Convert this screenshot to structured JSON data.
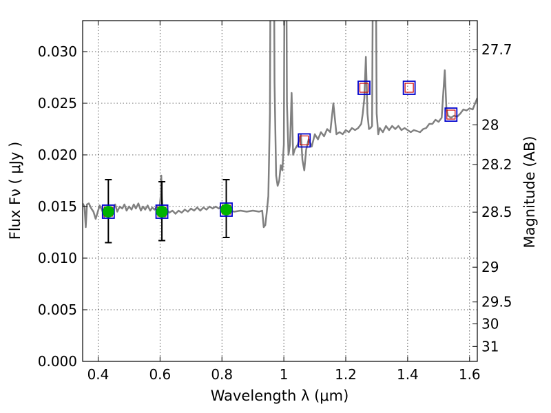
{
  "chart_data": {
    "type": "line",
    "xlabel": "Wavelength  λ (μm)",
    "ylabel": "Flux  Fν  ( μJy )",
    "y2label": "Magnitude (AB)",
    "xlim": [
      0.35,
      1.625
    ],
    "ylim": [
      0,
      0.033
    ],
    "grid": true,
    "x_ticks": [
      0.4,
      0.6,
      0.8,
      1.0,
      1.2,
      1.4,
      1.6
    ],
    "x_tick_labels": [
      "0.4",
      "0.6",
      "0.8",
      "1",
      "1.2",
      "1.4",
      "1.6"
    ],
    "y_ticks": [
      0.0,
      0.005,
      0.01,
      0.015,
      0.02,
      0.025,
      0.03
    ],
    "y_tick_labels": [
      "0.000",
      "0.005",
      "0.010",
      "0.015",
      "0.020",
      "0.025",
      "0.030"
    ],
    "y2_ticks": [
      {
        "mag": 27.7,
        "label": "27.7"
      },
      {
        "mag": 28.0,
        "label": "28"
      },
      {
        "mag": 28.2,
        "label": "28.2"
      },
      {
        "mag": 28.5,
        "label": "28.5"
      },
      {
        "mag": 29.0,
        "label": "29"
      },
      {
        "mag": 29.5,
        "label": "29.5"
      },
      {
        "mag": 30.0,
        "label": "30"
      },
      {
        "mag": 31.0,
        "label": "31"
      }
    ],
    "colors": {
      "spectrum": "#808080",
      "model_box": "#0000cc",
      "model_inner": "#cc0000",
      "detection": "#00b300",
      "errorbar": "#000000"
    },
    "spectrum": [
      [
        0.35,
        0.0153
      ],
      [
        0.356,
        0.015
      ],
      [
        0.36,
        0.013
      ],
      [
        0.364,
        0.0152
      ],
      [
        0.37,
        0.0153
      ],
      [
        0.378,
        0.0148
      ],
      [
        0.385,
        0.0145
      ],
      [
        0.392,
        0.0138
      ],
      [
        0.398,
        0.0144
      ],
      [
        0.405,
        0.0151
      ],
      [
        0.412,
        0.0147
      ],
      [
        0.42,
        0.014
      ],
      [
        0.426,
        0.0148
      ],
      [
        0.433,
        0.014
      ],
      [
        0.44,
        0.0149
      ],
      [
        0.447,
        0.0146
      ],
      [
        0.455,
        0.0152
      ],
      [
        0.462,
        0.0145
      ],
      [
        0.47,
        0.015
      ],
      [
        0.478,
        0.0148
      ],
      [
        0.485,
        0.0152
      ],
      [
        0.492,
        0.0146
      ],
      [
        0.5,
        0.015
      ],
      [
        0.508,
        0.0147
      ],
      [
        0.515,
        0.0152
      ],
      [
        0.522,
        0.0148
      ],
      [
        0.53,
        0.0153
      ],
      [
        0.538,
        0.0146
      ],
      [
        0.545,
        0.015
      ],
      [
        0.552,
        0.0147
      ],
      [
        0.56,
        0.0151
      ],
      [
        0.568,
        0.0146
      ],
      [
        0.575,
        0.0149
      ],
      [
        0.582,
        0.0147
      ],
      [
        0.59,
        0.015
      ],
      [
        0.598,
        0.0148
      ],
      [
        0.602,
        0.016
      ],
      [
        0.604,
        0.018
      ],
      [
        0.606,
        0.0158
      ],
      [
        0.61,
        0.0145
      ],
      [
        0.616,
        0.014
      ],
      [
        0.622,
        0.0147
      ],
      [
        0.63,
        0.0144
      ],
      [
        0.64,
        0.0146
      ],
      [
        0.65,
        0.0143
      ],
      [
        0.66,
        0.0146
      ],
      [
        0.67,
        0.0144
      ],
      [
        0.68,
        0.0147
      ],
      [
        0.69,
        0.0145
      ],
      [
        0.7,
        0.0148
      ],
      [
        0.71,
        0.0146
      ],
      [
        0.72,
        0.0149
      ],
      [
        0.73,
        0.0146
      ],
      [
        0.74,
        0.0149
      ],
      [
        0.75,
        0.0147
      ],
      [
        0.76,
        0.015
      ],
      [
        0.77,
        0.0148
      ],
      [
        0.78,
        0.015
      ],
      [
        0.79,
        0.0148
      ],
      [
        0.8,
        0.015
      ],
      [
        0.812,
        0.0147
      ],
      [
        0.825,
        0.0146
      ],
      [
        0.84,
        0.0145
      ],
      [
        0.86,
        0.0146
      ],
      [
        0.88,
        0.0145
      ],
      [
        0.9,
        0.0146
      ],
      [
        0.92,
        0.0145
      ],
      [
        0.93,
        0.0146
      ],
      [
        0.935,
        0.013
      ],
      [
        0.94,
        0.0132
      ],
      [
        0.945,
        0.0145
      ],
      [
        0.95,
        0.016
      ],
      [
        0.955,
        0.024
      ],
      [
        0.96,
        0.06
      ],
      [
        0.965,
        0.06
      ],
      [
        0.97,
        0.027
      ],
      [
        0.975,
        0.018
      ],
      [
        0.98,
        0.017
      ],
      [
        0.985,
        0.0175
      ],
      [
        0.99,
        0.019
      ],
      [
        0.995,
        0.0185
      ],
      [
        1.0,
        0.021
      ],
      [
        1.005,
        0.06
      ],
      [
        1.01,
        0.025
      ],
      [
        1.015,
        0.02
      ],
      [
        1.02,
        0.021
      ],
      [
        1.025,
        0.026
      ],
      [
        1.03,
        0.02
      ],
      [
        1.035,
        0.0205
      ],
      [
        1.045,
        0.021
      ],
      [
        1.055,
        0.022
      ],
      [
        1.06,
        0.0195
      ],
      [
        1.066,
        0.0185
      ],
      [
        1.072,
        0.0205
      ],
      [
        1.08,
        0.0215
      ],
      [
        1.09,
        0.0208
      ],
      [
        1.1,
        0.022
      ],
      [
        1.11,
        0.0215
      ],
      [
        1.12,
        0.0222
      ],
      [
        1.13,
        0.0218
      ],
      [
        1.14,
        0.0225
      ],
      [
        1.15,
        0.0222
      ],
      [
        1.16,
        0.025
      ],
      [
        1.17,
        0.022
      ],
      [
        1.18,
        0.0222
      ],
      [
        1.19,
        0.022
      ],
      [
        1.2,
        0.0224
      ],
      [
        1.21,
        0.0222
      ],
      [
        1.22,
        0.0226
      ],
      [
        1.23,
        0.0224
      ],
      [
        1.24,
        0.0226
      ],
      [
        1.25,
        0.023
      ],
      [
        1.255,
        0.024
      ],
      [
        1.26,
        0.0255
      ],
      [
        1.265,
        0.0295
      ],
      [
        1.27,
        0.024
      ],
      [
        1.275,
        0.0225
      ],
      [
        1.28,
        0.0226
      ],
      [
        1.285,
        0.0228
      ],
      [
        1.29,
        0.05
      ],
      [
        1.295,
        0.05
      ],
      [
        1.3,
        0.024
      ],
      [
        1.305,
        0.022
      ],
      [
        1.31,
        0.0226
      ],
      [
        1.32,
        0.0222
      ],
      [
        1.33,
        0.0228
      ],
      [
        1.34,
        0.0224
      ],
      [
        1.35,
        0.0228
      ],
      [
        1.36,
        0.0225
      ],
      [
        1.37,
        0.0228
      ],
      [
        1.38,
        0.0224
      ],
      [
        1.39,
        0.0226
      ],
      [
        1.4,
        0.0224
      ],
      [
        1.41,
        0.0222
      ],
      [
        1.42,
        0.0224
      ],
      [
        1.43,
        0.0223
      ],
      [
        1.44,
        0.0222
      ],
      [
        1.45,
        0.0225
      ],
      [
        1.46,
        0.0226
      ],
      [
        1.47,
        0.023
      ],
      [
        1.48,
        0.023
      ],
      [
        1.49,
        0.0234
      ],
      [
        1.5,
        0.0232
      ],
      [
        1.51,
        0.0236
      ],
      [
        1.515,
        0.026
      ],
      [
        1.52,
        0.0282
      ],
      [
        1.525,
        0.0245
      ],
      [
        1.53,
        0.0238
      ],
      [
        1.54,
        0.0236
      ],
      [
        1.55,
        0.0238
      ],
      [
        1.56,
        0.0237
      ],
      [
        1.57,
        0.024
      ],
      [
        1.58,
        0.0244
      ],
      [
        1.59,
        0.0243
      ],
      [
        1.6,
        0.0245
      ],
      [
        1.61,
        0.0244
      ],
      [
        1.618,
        0.025
      ],
      [
        1.625,
        0.0255
      ]
    ],
    "detections": [
      {
        "x": 0.433,
        "y": 0.0145,
        "err_low": 0.0115,
        "err_high": 0.0176
      },
      {
        "x": 0.606,
        "y": 0.0145,
        "err_low": 0.0117,
        "err_high": 0.0174
      },
      {
        "x": 0.814,
        "y": 0.0147,
        "err_low": 0.012,
        "err_high": 0.0176
      }
    ],
    "model_points": [
      {
        "x": 0.433,
        "y": 0.0145
      },
      {
        "x": 0.606,
        "y": 0.0145
      },
      {
        "x": 0.814,
        "y": 0.0147
      },
      {
        "x": 1.066,
        "y": 0.0214
      },
      {
        "x": 1.259,
        "y": 0.0265
      },
      {
        "x": 1.405,
        "y": 0.0265
      },
      {
        "x": 1.54,
        "y": 0.0239
      }
    ]
  }
}
